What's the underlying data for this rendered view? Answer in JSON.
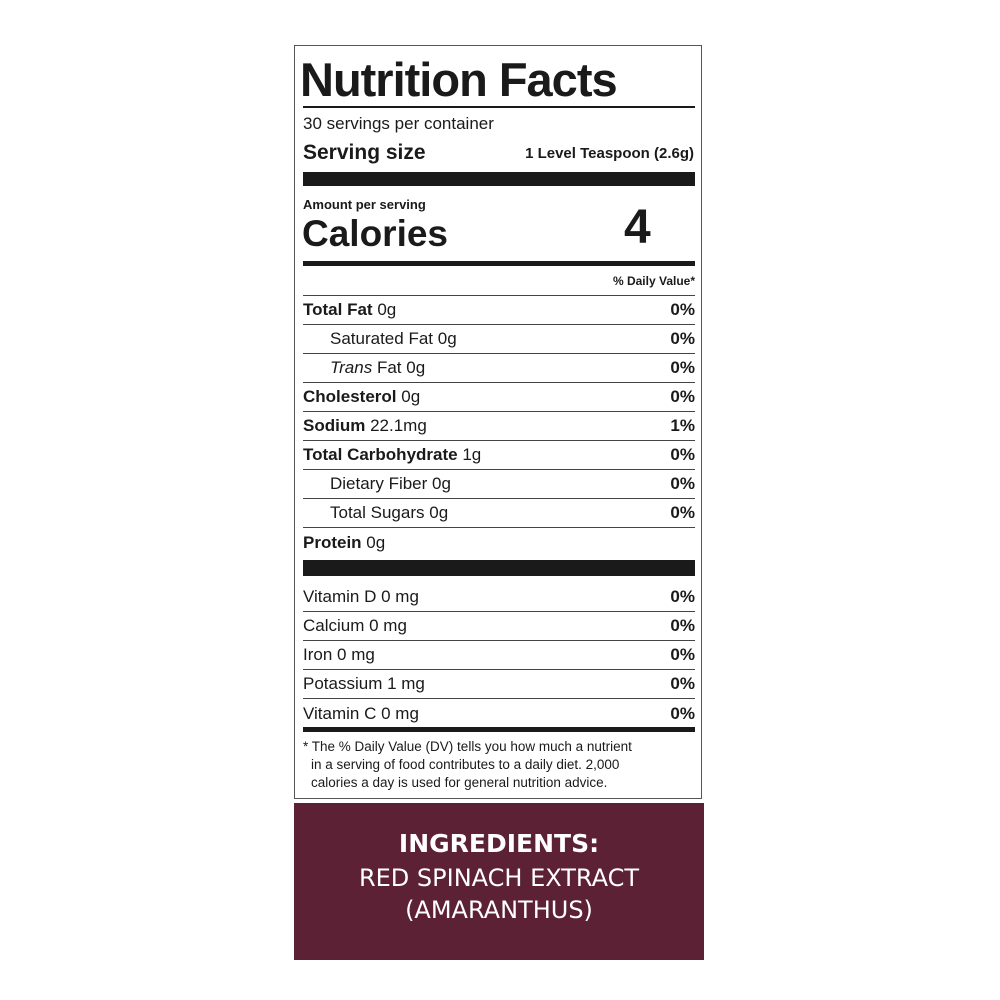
{
  "title": "Nutrition Facts",
  "servings": "30 servings per container",
  "serving_size": {
    "label": "Serving size",
    "value": "1 Level Teaspoon (2.6g)"
  },
  "amount_per_serving": "Amount per serving",
  "calories": {
    "label": "Calories",
    "value": "4"
  },
  "daily_value_header": "% Daily Value*",
  "nutrients": [
    {
      "name": "Total Fat",
      "amount": "0g",
      "dv": "0%"
    },
    {
      "name": "Saturated Fat",
      "amount": "0g",
      "dv": "0%"
    },
    {
      "name_italic": "Trans",
      "name": "Fat",
      "amount": "0g",
      "dv": "0%"
    },
    {
      "name": "Cholesterol",
      "amount": "0g",
      "dv": "0%"
    },
    {
      "name": "Sodium",
      "amount": "22.1mg",
      "dv": "1%"
    },
    {
      "name": "Total Carbohydrate",
      "amount": "1g",
      "dv": "0%"
    },
    {
      "name": "Dietary Fiber",
      "amount": "0g",
      "dv": "0%"
    },
    {
      "name": "Total Sugars",
      "amount": "0g",
      "dv": "0%"
    },
    {
      "name": "Protein",
      "amount": "0g"
    }
  ],
  "vitamins": [
    {
      "text": "Vitamin D 0 mg",
      "dv": "0%"
    },
    {
      "text": "Calcium 0 mg",
      "dv": "0%"
    },
    {
      "text": "Iron 0 mg",
      "dv": "0%"
    },
    {
      "text": "Potassium 1 mg",
      "dv": "0%"
    },
    {
      "text": "Vitamin C 0 mg",
      "dv": "0%"
    }
  ],
  "footnote": [
    "* The % Daily Value (DV) tells you how much a nutrient",
    "in a serving of food contributes to a daily diet. 2,000",
    "calories a day is used for general nutrition advice."
  ],
  "ingredients": {
    "heading": "INGREDIENTS:",
    "lines": [
      "RED SPINACH EXTRACT",
      "(AMARANTHUS)"
    ]
  }
}
